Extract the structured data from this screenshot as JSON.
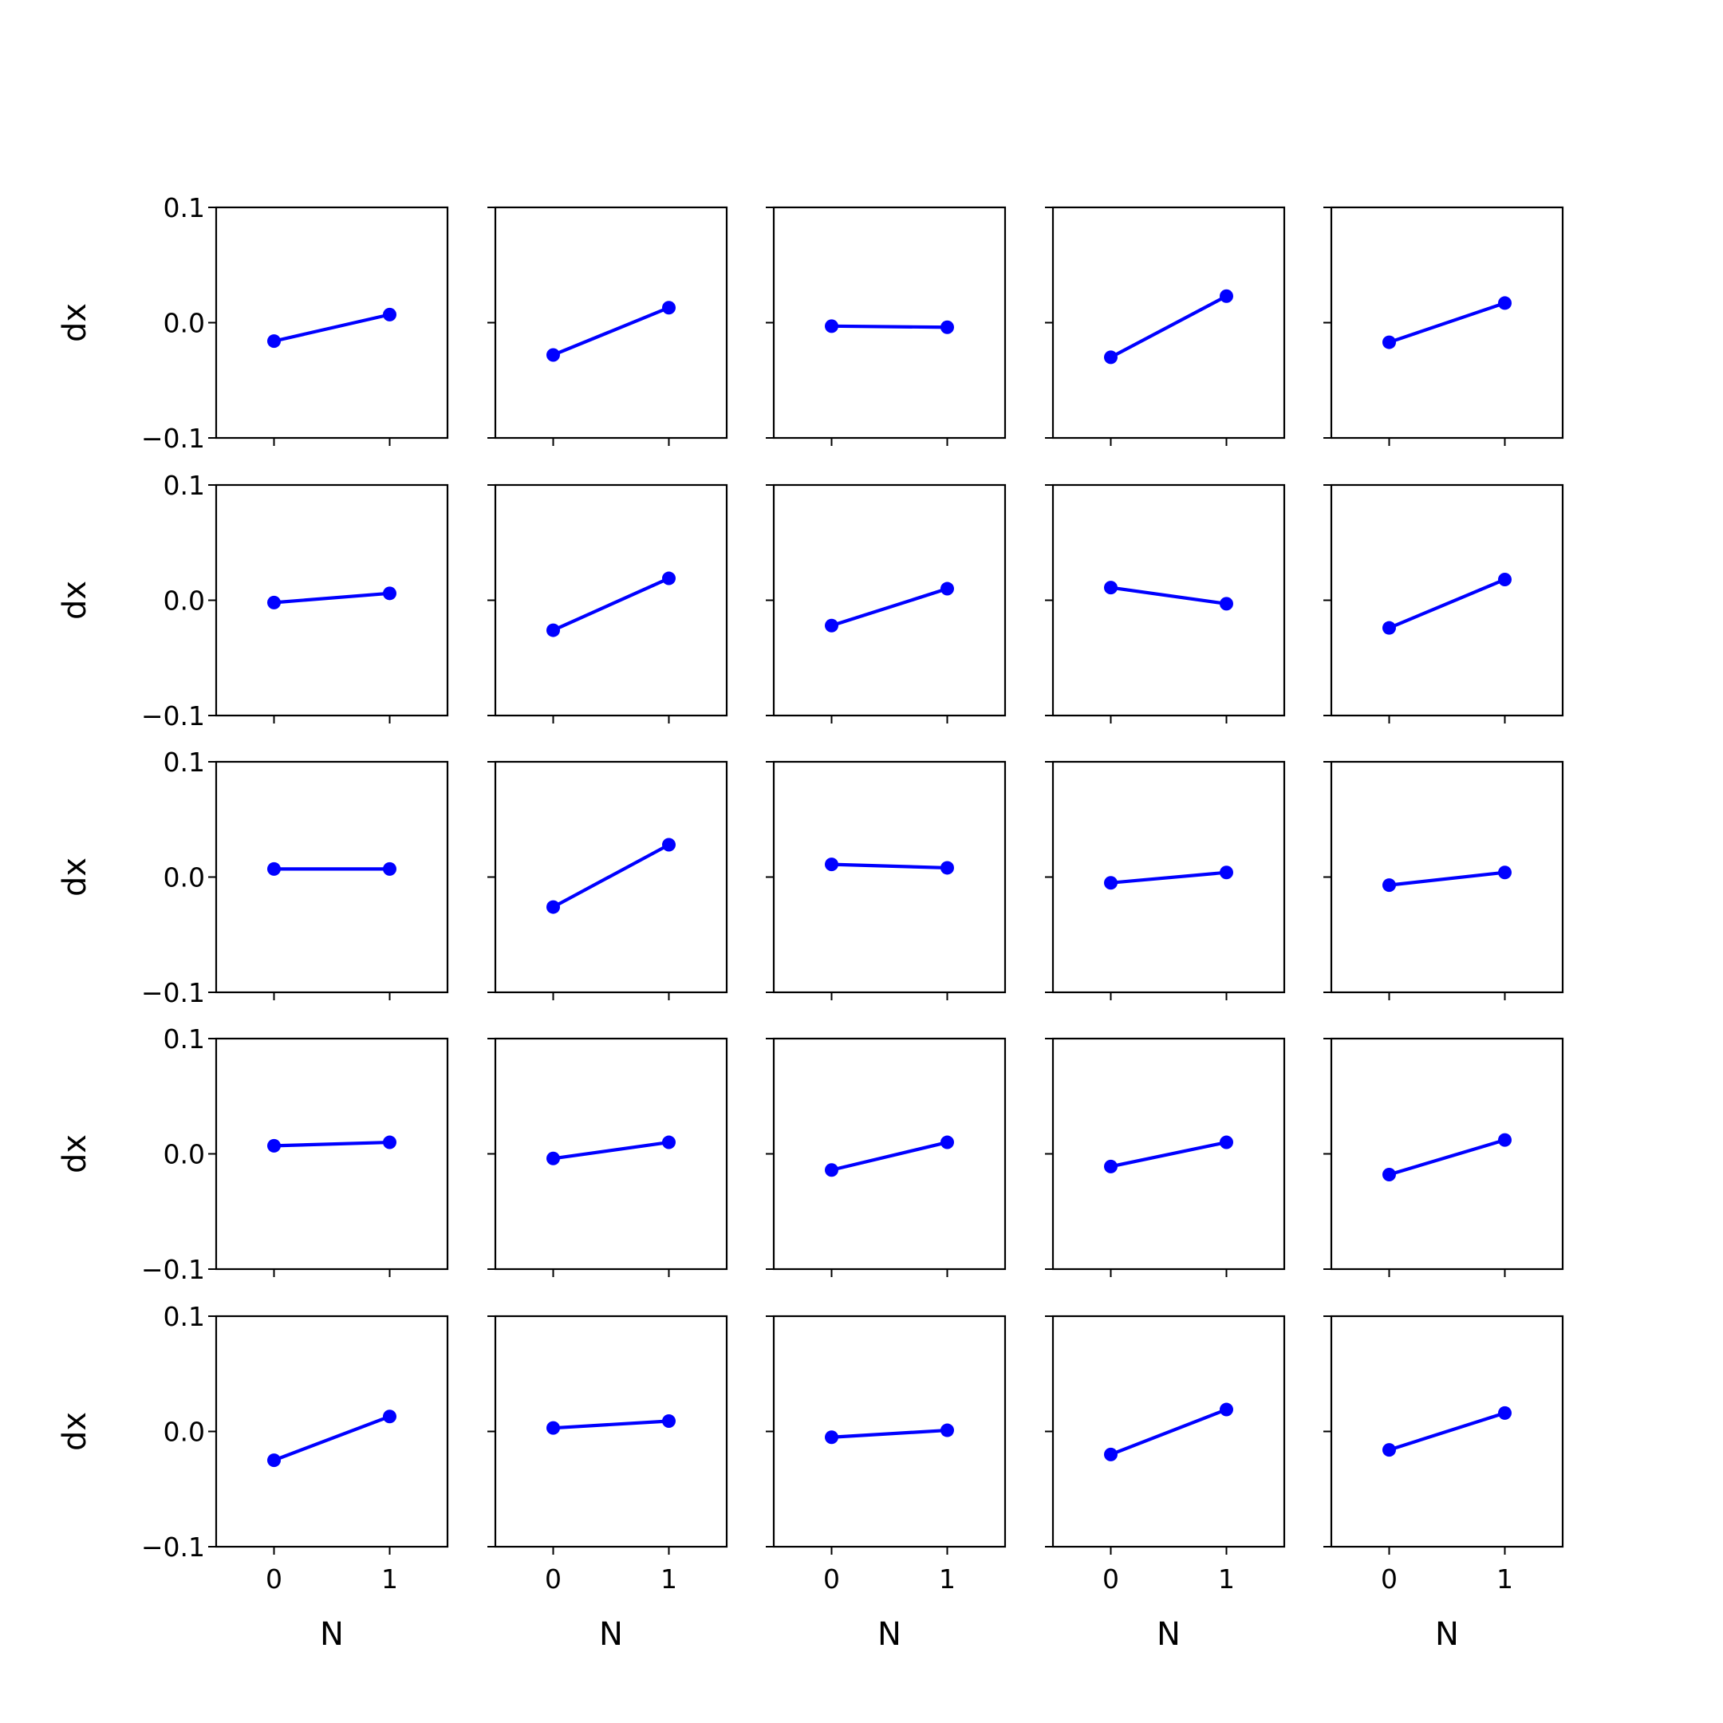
{
  "figure": {
    "background": "#ffffff",
    "line_color": "#0000ff",
    "frame_color": "#000000"
  },
  "labels": {
    "xlabel": "N",
    "ylabel": "dx",
    "xtick_labels": [
      "0",
      "1"
    ],
    "ytick_labels": [
      "0.1",
      "0.0",
      "−0.1"
    ]
  },
  "chart_data": {
    "type": "line",
    "layout": "5x5 grid of small multiples, shared axes",
    "x": [
      0,
      1
    ],
    "xlim": [
      -0.5,
      1.5
    ],
    "ylim": [
      -0.1,
      0.1
    ],
    "yticks": [
      0.1,
      0.0,
      -0.1
    ],
    "xticks": [
      0,
      1
    ],
    "xlabel": "N",
    "ylabel": "dx",
    "grid": false,
    "markers": true,
    "panels": [
      [
        -0.016,
        0.007
      ],
      [
        -0.028,
        0.013
      ],
      [
        -0.003,
        -0.004
      ],
      [
        -0.03,
        0.023
      ],
      [
        -0.017,
        0.017
      ],
      [
        -0.002,
        0.006
      ],
      [
        -0.026,
        0.019
      ],
      [
        -0.022,
        0.01
      ],
      [
        0.011,
        -0.003
      ],
      [
        -0.024,
        0.018
      ],
      [
        0.007,
        0.007
      ],
      [
        -0.026,
        0.028
      ],
      [
        0.011,
        0.008
      ],
      [
        -0.005,
        0.004
      ],
      [
        -0.007,
        0.004
      ],
      [
        0.007,
        0.01
      ],
      [
        -0.004,
        0.01
      ],
      [
        -0.014,
        0.01
      ],
      [
        -0.011,
        0.01
      ],
      [
        -0.018,
        0.012
      ],
      [
        -0.025,
        0.013
      ],
      [
        0.003,
        0.009
      ],
      [
        -0.005,
        0.001
      ],
      [
        -0.02,
        0.019
      ],
      [
        -0.016,
        0.016
      ]
    ]
  }
}
